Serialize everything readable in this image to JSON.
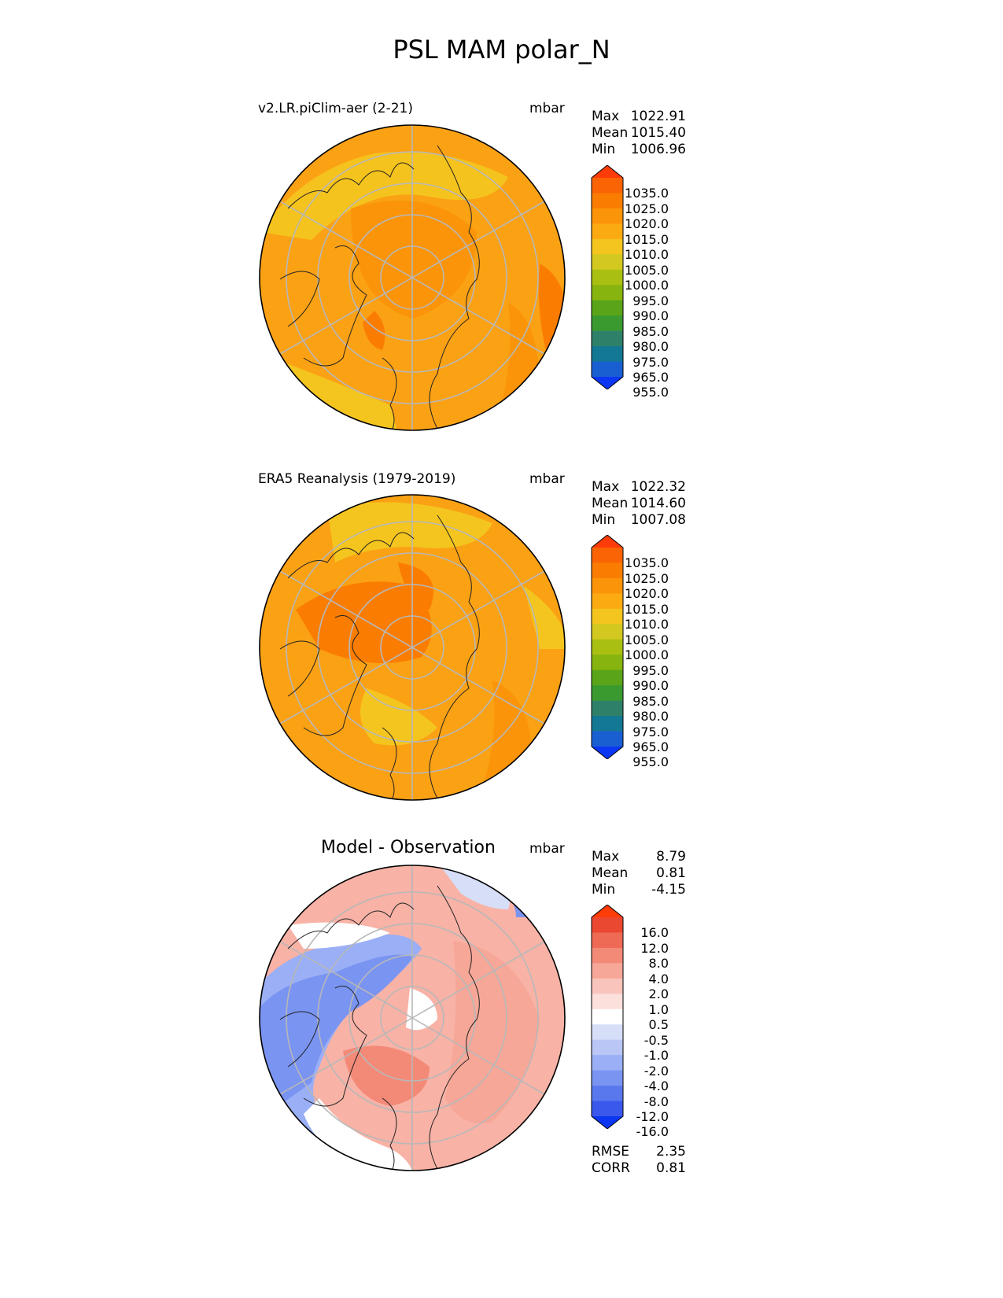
{
  "figure": {
    "title": "PSL MAM polar_N"
  },
  "panels": [
    {
      "title": "v2.LR.piClim-aer (2-21)",
      "units": "mbar",
      "stats": [
        {
          "label": "Max",
          "value": "1022.91"
        },
        {
          "label": "Mean",
          "value": "1015.40"
        },
        {
          "label": "Min",
          "value": "1006.96"
        }
      ],
      "colorbar_labels": [
        "1035.0",
        "1025.0",
        "1020.0",
        "1015.0",
        "1010.0",
        "1005.0",
        "1000.0",
        "995.0",
        "990.0",
        "985.0",
        "980.0",
        "975.0",
        "965.0",
        "955.0"
      ]
    },
    {
      "title": "ERA5 Reanalysis (1979-2019)",
      "units": "mbar",
      "stats": [
        {
          "label": "Max",
          "value": "1022.32"
        },
        {
          "label": "Mean",
          "value": "1014.60"
        },
        {
          "label": "Min",
          "value": "1007.08"
        }
      ],
      "colorbar_labels": [
        "1035.0",
        "1025.0",
        "1020.0",
        "1015.0",
        "1010.0",
        "1005.0",
        "1000.0",
        "995.0",
        "990.0",
        "985.0",
        "980.0",
        "975.0",
        "965.0",
        "955.0"
      ]
    },
    {
      "title": "Model - Observation",
      "units": "mbar",
      "stats": [
        {
          "label": "Max",
          "value": "8.79"
        },
        {
          "label": "Mean",
          "value": "0.81"
        },
        {
          "label": "Min",
          "value": "-4.15"
        }
      ],
      "colorbar_labels": [
        "16.0",
        "12.0",
        "8.0",
        "4.0",
        "2.0",
        "1.0",
        "0.5",
        "-0.5",
        "-1.0",
        "-2.0",
        "-4.0",
        "-8.0",
        "-12.0",
        "-16.0"
      ],
      "metrics": [
        {
          "label": "RMSE",
          "value": "2.35"
        },
        {
          "label": "CORR",
          "value": "0.81"
        }
      ]
    }
  ],
  "colors": {
    "abs_colormap": [
      "#0b36f2",
      "#1a5fd2",
      "#137893",
      "#2f8069",
      "#3a9a30",
      "#5aa419",
      "#87b40f",
      "#a9c012",
      "#d2c820",
      "#f4c51e",
      "#fcaa12",
      "#fb9408",
      "#fa7d02",
      "#fa6404",
      "#fe3c08"
    ],
    "diff_colormap": [
      "#0b36f2",
      "#3a58ec",
      "#5a78ee",
      "#7a94f2",
      "#9aaff5",
      "#b9c6f6",
      "#d6def8",
      "#ffffff",
      "#fbe0dc",
      "#f9c4bb",
      "#f6a798",
      "#f38a78",
      "#ef6a55",
      "#ea4830",
      "#fe3c08"
    ],
    "map_fill_model": "#fba114",
    "map_fill_obs": "#fba114",
    "map_fill_diff": "#f8b2a6"
  }
}
